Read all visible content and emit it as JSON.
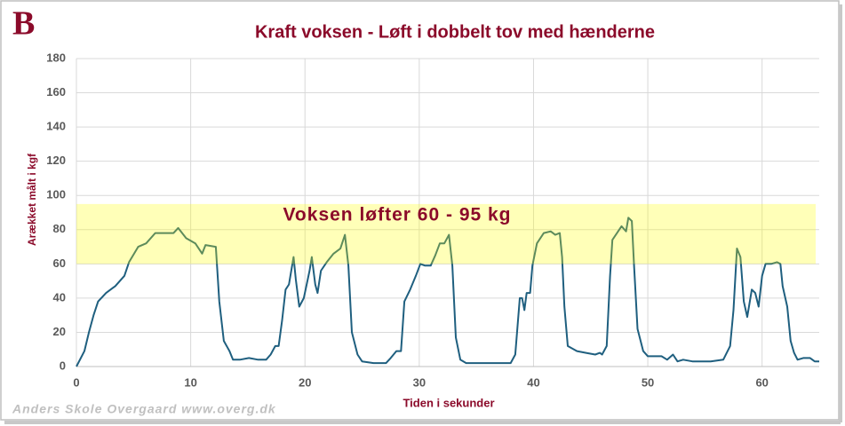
{
  "logo": "B",
  "footer": "Anders Skole Overgaard www.overg.dk",
  "chart_data": {
    "type": "line",
    "title": "Kraft voksen - Løft i dobbelt tov med hænderne",
    "x_label": "Tiden i sekunder",
    "y_label": "Arækket målt i kgf",
    "annotation": "Voksen løfter 60 - 95 kg",
    "highlight_band": [
      60,
      95
    ],
    "band_color": "#ffff00",
    "grid": true,
    "xlim": [
      0,
      65
    ],
    "xticks": [
      0,
      10,
      20,
      30,
      40,
      50,
      60
    ],
    "ylim": [
      0,
      180
    ],
    "yticks": [
      0,
      20,
      40,
      60,
      80,
      100,
      120,
      140,
      160,
      180
    ],
    "series": [
      {
        "color": "#1f5f7f",
        "x": [
          0,
          0.7,
          1.1,
          1.5,
          1.9,
          2.6,
          3.4,
          4.2,
          4.6,
          5.4,
          6.1,
          6.9,
          7.7,
          8.5,
          8.9,
          9.6,
          10.4,
          11.0,
          11.3,
          12.2,
          12.5,
          12.9,
          13.4,
          13.7,
          14.3,
          15.1,
          15.9,
          16.6,
          17.0,
          17.4,
          17.7,
          18.0,
          18.3,
          18.6,
          19.0,
          19.2,
          19.5,
          19.9,
          20.4,
          20.6,
          20.9,
          21.1,
          21.4,
          21.9,
          22.5,
          23.1,
          23.5,
          23.8,
          24.1,
          24.6,
          25.0,
          26.0,
          27.1,
          27.5,
          28.0,
          28.4,
          28.7,
          29.2,
          29.7,
          30.1,
          30.5,
          31.0,
          31.4,
          31.8,
          32.2,
          32.6,
          32.9,
          33.2,
          33.6,
          34.1,
          36.1,
          38.0,
          38.4,
          38.8,
          39.0,
          39.2,
          39.4,
          39.7,
          39.9,
          40.3,
          40.9,
          41.5,
          41.9,
          42.3,
          42.5,
          42.7,
          43.0,
          43.8,
          44.6,
          45.4,
          45.8,
          46.0,
          46.4,
          46.7,
          46.9,
          47.3,
          47.7,
          48.1,
          48.3,
          48.6,
          48.8,
          49.1,
          49.6,
          50.0,
          51.2,
          51.7,
          52.2,
          52.6,
          53.1,
          53.9,
          55.5,
          56.6,
          57.2,
          57.5,
          57.8,
          58.1,
          58.4,
          58.7,
          59.1,
          59.4,
          59.7,
          60.0,
          60.3,
          60.8,
          61.3,
          61.6,
          61.8,
          62.2,
          62.5,
          62.8,
          63.1,
          63.6,
          64.2,
          64.6,
          65.0
        ],
        "values": [
          0,
          9,
          20,
          30,
          38,
          43,
          47,
          53,
          61,
          70,
          72,
          78,
          78,
          78,
          81,
          75,
          72,
          66,
          71,
          70,
          38,
          15,
          9,
          4,
          4,
          5,
          4,
          4,
          7,
          12,
          12,
          27,
          45,
          48,
          64,
          51,
          35,
          40,
          56,
          64,
          48,
          43,
          56,
          61,
          66,
          69,
          77,
          59,
          20,
          7,
          3,
          2,
          2,
          5,
          9,
          9,
          38,
          45,
          53,
          60,
          59,
          59,
          65,
          72,
          72,
          77,
          59,
          17,
          4,
          2,
          2,
          2,
          7,
          40,
          40,
          33,
          43,
          43,
          59,
          72,
          78,
          79,
          77,
          78,
          64,
          35,
          12,
          9,
          8,
          7,
          8,
          7,
          12,
          53,
          74,
          78,
          82,
          79,
          87,
          85,
          59,
          22,
          9,
          6,
          6,
          4,
          7,
          3,
          4,
          3,
          3,
          4,
          12,
          33,
          69,
          64,
          38,
          29,
          45,
          43,
          35,
          53,
          60,
          60,
          61,
          60,
          47,
          35,
          15,
          8,
          4,
          5,
          5,
          3,
          3
        ]
      }
    ]
  }
}
